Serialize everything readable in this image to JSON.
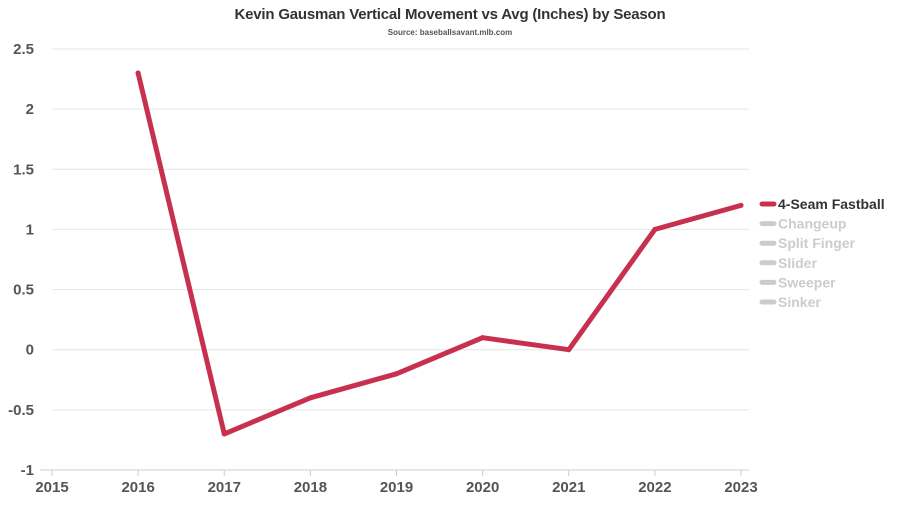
{
  "chart_data": {
    "type": "line",
    "title": "Kevin Gausman Vertical Movement vs Avg (Inches) by Season",
    "subtitle": "Source: baseballsavant.mlb.com",
    "xlabel": "",
    "ylabel": "",
    "x_ticks": [
      "2015",
      "2016",
      "2017",
      "2018",
      "2019",
      "2020",
      "2021",
      "2022",
      "2023"
    ],
    "y_ticks": [
      "2.5",
      "2",
      "1.5",
      "1",
      "0.5",
      "0",
      "-0.5",
      "-1"
    ],
    "xlim": [
      2015,
      2023
    ],
    "ylim": [
      -1,
      2.5
    ],
    "grid": true,
    "legend_position": "right",
    "series": [
      {
        "name": "4-Seam Fastball",
        "color": "#c8304f",
        "active": true,
        "x": [
          2016,
          2017,
          2018,
          2019,
          2020,
          2021,
          2022,
          2023
        ],
        "y": [
          2.3,
          -0.7,
          -0.4,
          -0.2,
          0.1,
          0.0,
          1.0,
          1.2
        ]
      },
      {
        "name": "Changeup",
        "color": "#cccccc",
        "active": false,
        "x": [],
        "y": []
      },
      {
        "name": "Split Finger",
        "color": "#cccccc",
        "active": false,
        "x": [],
        "y": []
      },
      {
        "name": "Slider",
        "color": "#cccccc",
        "active": false,
        "x": [],
        "y": []
      },
      {
        "name": "Sweeper",
        "color": "#cccccc",
        "active": false,
        "x": [],
        "y": []
      },
      {
        "name": "Sinker",
        "color": "#cccccc",
        "active": false,
        "x": [],
        "y": []
      }
    ]
  }
}
